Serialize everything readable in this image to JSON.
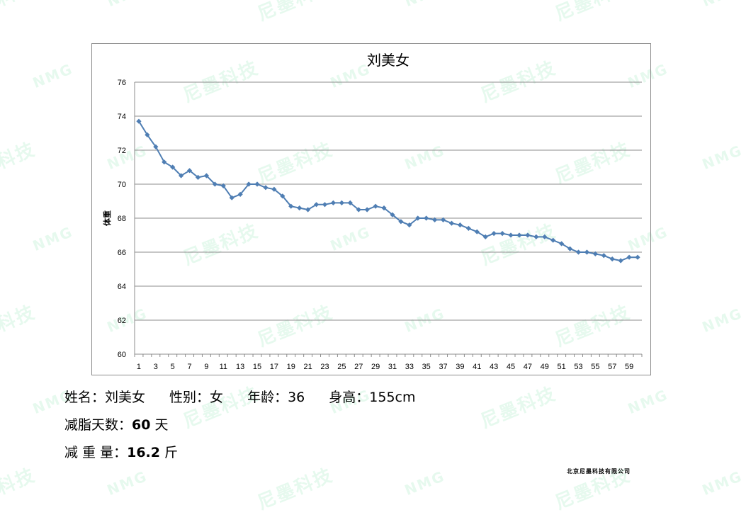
{
  "chart_data": {
    "type": "line",
    "title": "刘美女",
    "xlabel": "",
    "ylabel": "体重",
    "x": [
      1,
      2,
      3,
      4,
      5,
      6,
      7,
      8,
      9,
      10,
      11,
      12,
      13,
      14,
      15,
      16,
      17,
      18,
      19,
      20,
      21,
      22,
      23,
      24,
      25,
      26,
      27,
      28,
      29,
      30,
      31,
      32,
      33,
      34,
      35,
      36,
      37,
      38,
      39,
      40,
      41,
      42,
      43,
      44,
      45,
      46,
      47,
      48,
      49,
      50,
      51,
      52,
      53,
      54,
      55,
      56,
      57,
      58,
      59,
      60
    ],
    "x_tick_labels": [
      "1",
      "3",
      "5",
      "7",
      "9",
      "11",
      "13",
      "15",
      "17",
      "19",
      "21",
      "23",
      "25",
      "27",
      "29",
      "31",
      "33",
      "35",
      "37",
      "39",
      "41",
      "43",
      "45",
      "47",
      "49",
      "51",
      "53",
      "55",
      "57",
      "59"
    ],
    "ylim": [
      60,
      76
    ],
    "y_ticks": [
      60,
      62,
      64,
      66,
      68,
      70,
      72,
      74,
      76
    ],
    "grid": true,
    "legend": "none",
    "series": [
      {
        "color": "#4f7eb3",
        "values": [
          73.7,
          72.9,
          72.2,
          71.3,
          71.0,
          70.5,
          70.8,
          70.4,
          70.5,
          70.0,
          69.9,
          69.2,
          69.4,
          70.0,
          70.0,
          69.8,
          69.7,
          69.3,
          68.7,
          68.6,
          68.5,
          68.8,
          68.8,
          68.9,
          68.9,
          68.9,
          68.5,
          68.5,
          68.7,
          68.6,
          68.2,
          67.8,
          67.6,
          68.0,
          68.0,
          67.9,
          67.9,
          67.7,
          67.6,
          67.4,
          67.2,
          66.9,
          67.1,
          67.1,
          67.0,
          67.0,
          67.0,
          66.9,
          66.9,
          66.7,
          66.5,
          66.2,
          66.0,
          66.0,
          65.9,
          65.8,
          65.6,
          65.5,
          65.7,
          65.7
        ]
      }
    ]
  },
  "info": {
    "name_label": "姓名：",
    "name_value": "刘美女",
    "gender_label": "性别：",
    "gender_value": "女",
    "age_label": "年龄：",
    "age_value": "36",
    "height_label": "身高：",
    "height_value": "155cm",
    "days_label": "减脂天数：",
    "days_value": "60",
    "days_unit": "天",
    "loss_label": "减 重 量：",
    "loss_value": "16.2",
    "loss_unit": "斤"
  },
  "company": "北京尼墨科技有限公司",
  "watermark_texts": [
    "尼墨科技",
    "NMG"
  ],
  "colors": {
    "series": "#4f7eb3",
    "grid": "#8c8c8c",
    "watermark": "#40d278"
  }
}
